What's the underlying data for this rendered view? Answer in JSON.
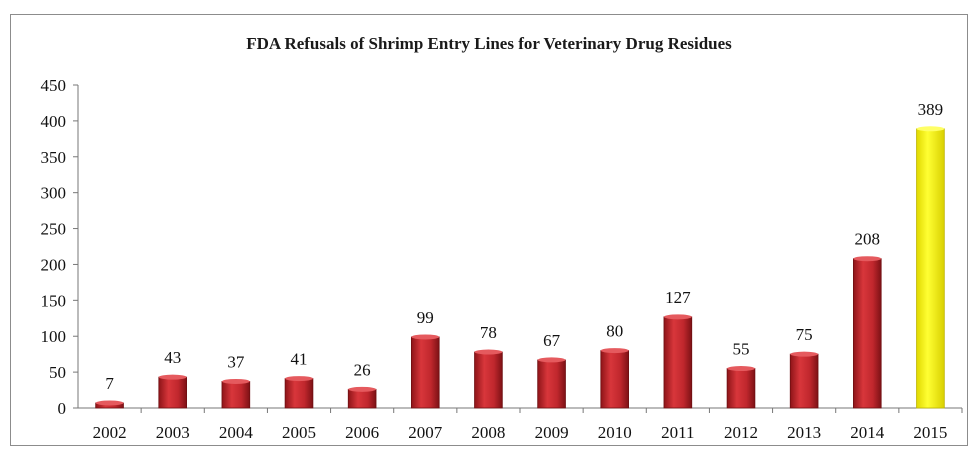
{
  "chart_data": {
    "type": "bar",
    "title": "FDA Refusals of Shrimp Entry Lines for Veterinary Drug Residues",
    "xlabel": "",
    "ylabel": "",
    "categories": [
      "2002",
      "2003",
      "2004",
      "2005",
      "2006",
      "2007",
      "2008",
      "2009",
      "2010",
      "2011",
      "2012",
      "2013",
      "2014",
      "2015"
    ],
    "values": [
      7,
      43,
      37,
      41,
      26,
      99,
      78,
      67,
      80,
      127,
      55,
      75,
      208,
      389
    ],
    "ylim": [
      0,
      450
    ],
    "yticks": [
      0,
      50,
      100,
      150,
      200,
      250,
      300,
      350,
      400,
      450
    ],
    "grid": false,
    "legend": "none",
    "colors": {
      "bar": "#c0272d",
      "bar_highlight": "#ffff00",
      "highlight_category": "2015"
    }
  }
}
